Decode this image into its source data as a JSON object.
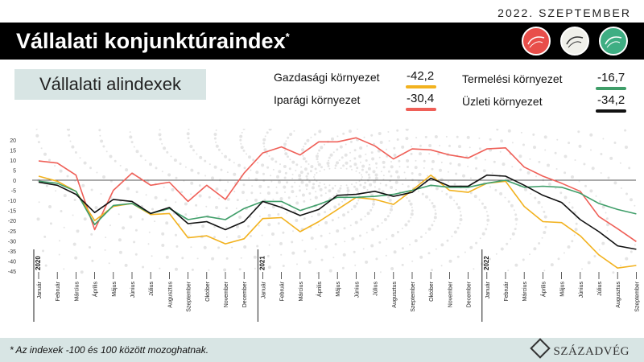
{
  "header": {
    "date": "2022. SZEPTEMBER",
    "title": "Vállalati konjunktúraindex",
    "title_mark": "*"
  },
  "subtitle": "Vállalati alindexek",
  "legend": [
    {
      "label": "Gazdasági környezet",
      "value": "-42,2",
      "color": "#f2b21f"
    },
    {
      "label": "Iparági környezet",
      "value": "-30,4",
      "color": "#ef5f57"
    },
    {
      "label": "Termelési környezet",
      "value": "-16,7",
      "color": "#3f9e69"
    },
    {
      "label": "Üzleti környezet",
      "value": "-34,2",
      "color": "#111111"
    }
  ],
  "badges": [
    {
      "icon": "red-gauge-icon",
      "color": "#e84e4a"
    },
    {
      "icon": "white-gauge-icon",
      "color": "#f0f0ea"
    },
    {
      "icon": "green-gauge-icon",
      "color": "#3fae83"
    }
  ],
  "chart_data": {
    "type": "line",
    "categories": [
      "Január",
      "Február",
      "Március",
      "Április",
      "Május",
      "Június",
      "Július",
      "Augusztus",
      "Szeptember",
      "Október",
      "November",
      "December",
      "Január",
      "Február",
      "Március",
      "Április",
      "Május",
      "Június",
      "Július",
      "Augusztus",
      "Szeptember",
      "Október",
      "November",
      "December",
      "Január",
      "Február",
      "Március",
      "Április",
      "Május",
      "Június",
      "Július",
      "Augusztus",
      "Szeptember"
    ],
    "year_labels": [
      {
        "index": 0,
        "label": "2020"
      },
      {
        "index": 12,
        "label": "2021"
      },
      {
        "index": 24,
        "label": "2022"
      }
    ],
    "yticks": [
      20,
      15,
      10,
      5,
      0,
      -5,
      -10,
      -15,
      -20,
      -25,
      -30,
      -35,
      -40,
      -45
    ],
    "ylim": [
      -45,
      22
    ],
    "series": [
      {
        "name": "Iparági környezet",
        "color": "#ef5f57",
        "values": [
          9.5,
          8.5,
          2.5,
          -24.5,
          -5,
          3.5,
          -2.5,
          -1,
          -10.5,
          -2.5,
          -9.5,
          3.5,
          13.5,
          16.5,
          12.5,
          19,
          19,
          21,
          17,
          10.5,
          15.5,
          15,
          12.5,
          11,
          15.5,
          16,
          6.5,
          2,
          -1.5,
          -5.5,
          -18,
          -24,
          -30.4
        ]
      },
      {
        "name": "Gazdasági környezet",
        "color": "#f2b21f",
        "values": [
          2,
          -0.5,
          -5.5,
          -20,
          -13,
          -11.5,
          -17,
          -16.5,
          -28.5,
          -27.5,
          -31.5,
          -29,
          -19,
          -18.5,
          -25.5,
          -20.5,
          -14.5,
          -8.5,
          -9.5,
          -12,
          -5,
          2.5,
          -5,
          -6,
          -1.5,
          -0.5,
          -13,
          -20.5,
          -21,
          -27.5,
          -37,
          -43.5,
          -42.2
        ]
      },
      {
        "name": "Termelési környezet",
        "color": "#3f9e69",
        "values": [
          -0.5,
          -1.5,
          -5.5,
          -22,
          -12.5,
          -11.5,
          -16.5,
          -14,
          -19.5,
          -18,
          -19.5,
          -14,
          -10.5,
          -10.5,
          -15,
          -12,
          -8.5,
          -8.5,
          -8,
          -7,
          -5,
          -2.5,
          -3.5,
          -3.5,
          -1.5,
          0,
          -3.5,
          -3,
          -3.5,
          -6.5,
          -11.5,
          -14.5,
          -16.7
        ]
      },
      {
        "name": "Üzleti környezet",
        "color": "#111111",
        "values": [
          -1,
          -2.5,
          -7,
          -16,
          -9.5,
          -10.5,
          -16.5,
          -13.5,
          -21.5,
          -20.5,
          -24.5,
          -20.5,
          -10.5,
          -13.5,
          -17.5,
          -14.5,
          -7.5,
          -7,
          -5.5,
          -8,
          -6,
          1,
          -3,
          -3,
          2.5,
          2,
          -2.5,
          -7.5,
          -11,
          -19.5,
          -25.5,
          -32.5,
          -34.2
        ]
      }
    ]
  },
  "footer": {
    "note": "* Az indexek -100 és 100 között mozoghatnak.",
    "logo": "SZÁZADVÉG"
  }
}
